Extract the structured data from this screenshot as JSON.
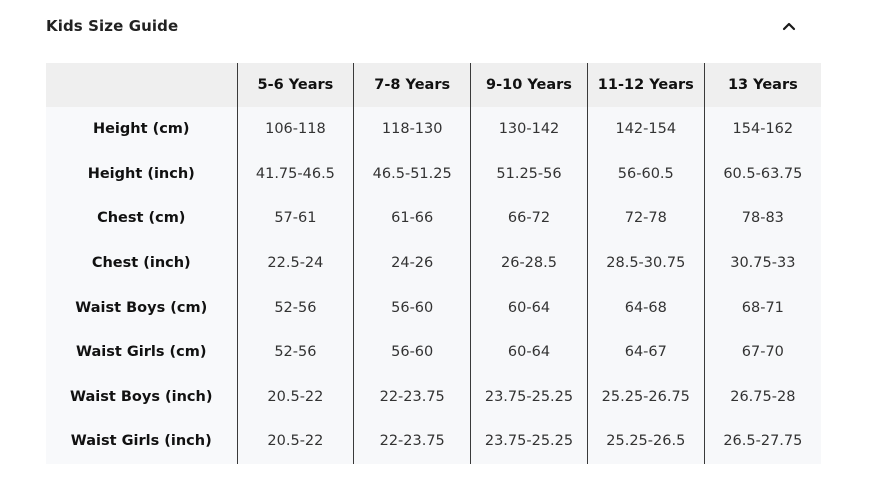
{
  "guide": {
    "title": "Kids Size Guide",
    "toggle_icon": "chevron-up-icon"
  },
  "table": {
    "columns": [
      "5-6 Years",
      "7-8 Years",
      "9-10 Years",
      "11-12 Years",
      "13 Years"
    ],
    "rows": [
      {
        "label": "Height (cm)",
        "values": [
          "106-118",
          "118-130",
          "130-142",
          "142-154",
          "154-162"
        ]
      },
      {
        "label": "Height (inch)",
        "values": [
          "41.75-46.5",
          "46.5-51.25",
          "51.25-56",
          "56-60.5",
          "60.5-63.75"
        ]
      },
      {
        "label": "Chest (cm)",
        "values": [
          "57-61",
          "61-66",
          "66-72",
          "72-78",
          "78-83"
        ]
      },
      {
        "label": "Chest (inch)",
        "values": [
          "22.5-24",
          "24-26",
          "26-28.5",
          "28.5-30.75",
          "30.75-33"
        ]
      },
      {
        "label": "Waist Boys (cm)",
        "values": [
          "52-56",
          "56-60",
          "60-64",
          "64-68",
          "68-71"
        ]
      },
      {
        "label": "Waist Girls (cm)",
        "values": [
          "52-56",
          "56-60",
          "60-64",
          "64-67",
          "67-70"
        ]
      },
      {
        "label": "Waist Boys (inch)",
        "values": [
          "20.5-22",
          "22-23.75",
          "23.75-25.25",
          "25.25-26.75",
          "26.75-28"
        ]
      },
      {
        "label": "Waist Girls (inch)",
        "values": [
          "20.5-22",
          "22-23.75",
          "23.75-25.25",
          "25.25-26.5",
          "26.5-27.75"
        ]
      }
    ]
  }
}
